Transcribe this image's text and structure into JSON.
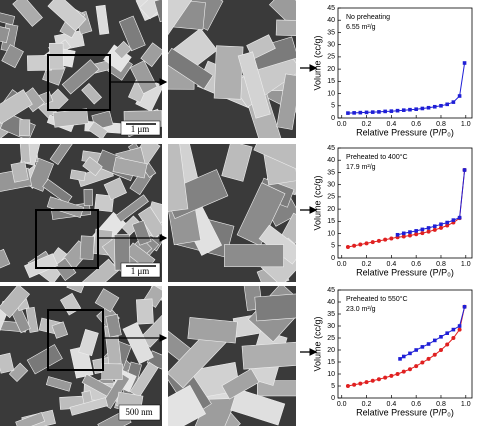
{
  "images": [
    {
      "scale_bar": "1 μm"
    },
    {
      "scale_bar": "1 μm"
    },
    {
      "scale_bar": "500 nm"
    }
  ],
  "chart_data": [
    {
      "type": "line",
      "annotation": "No preheating",
      "annotation2": "6.55 m²/g",
      "x_label": "Relative Pressure (P/P₀)",
      "y_label": "Volume (cc/g)",
      "xlim": [
        -0.03,
        1.05
      ],
      "ylim": [
        0,
        45
      ],
      "xticks": [
        {
          "value": 0,
          "label": "0.0"
        },
        0.2,
        0.4,
        0.6,
        0.8,
        {
          "value": 1,
          "label": "1.0"
        }
      ],
      "yticks": [
        0,
        5,
        10,
        15,
        20,
        25,
        30,
        35,
        40,
        45
      ],
      "series": [
        {
          "color": "#1f1fd6",
          "marker": "square",
          "x": [
            0.05,
            0.1,
            0.15,
            0.2,
            0.25,
            0.3,
            0.35,
            0.4,
            0.45,
            0.5,
            0.55,
            0.6,
            0.65,
            0.7,
            0.75,
            0.8,
            0.85,
            0.9,
            0.95,
            0.99
          ],
          "values": [
            2.0,
            2.1,
            2.2,
            2.3,
            2.4,
            2.5,
            2.7,
            2.8,
            3.0,
            3.2,
            3.4,
            3.6,
            3.9,
            4.2,
            4.6,
            5.0,
            5.6,
            6.5,
            9.0,
            22.5
          ]
        }
      ]
    },
    {
      "type": "line",
      "annotation": "Preheated to 400°C",
      "annotation2": "17.9 m²/g",
      "x_label": "Relative Pressure (P/P₀)",
      "y_label": "Volume (cc/g)",
      "xlim": [
        -0.03,
        1.05
      ],
      "ylim": [
        0,
        45
      ],
      "xticks": [
        {
          "value": 0,
          "label": "0.0"
        },
        0.2,
        0.4,
        0.6,
        0.8,
        {
          "value": 1,
          "label": "1.0"
        }
      ],
      "yticks": [
        0,
        5,
        10,
        15,
        20,
        25,
        30,
        35,
        40,
        45
      ],
      "series": [
        {
          "color": "#e02020",
          "marker": "circle",
          "x": [
            0.05,
            0.1,
            0.15,
            0.2,
            0.25,
            0.3,
            0.35,
            0.4,
            0.45,
            0.5,
            0.55,
            0.6,
            0.65,
            0.7,
            0.75,
            0.8,
            0.85,
            0.9,
            0.95,
            0.99
          ],
          "values": [
            4.5,
            5,
            5.5,
            6,
            6.5,
            7,
            7.5,
            8,
            8.5,
            8.8,
            9.2,
            9.7,
            10.2,
            10.8,
            11.5,
            12.3,
            13.3,
            14.5,
            16.3,
            36
          ]
        },
        {
          "color": "#1f1fd6",
          "marker": "square",
          "x": [
            0.99,
            0.95,
            0.9,
            0.85,
            0.8,
            0.75,
            0.7,
            0.65,
            0.6,
            0.55,
            0.5,
            0.45
          ],
          "values": [
            36,
            16.5,
            15.5,
            14.5,
            13.8,
            13,
            12.3,
            11.7,
            11.1,
            10.6,
            10.1,
            9.5
          ]
        }
      ]
    },
    {
      "type": "line",
      "annotation": "Preheated to 550°C",
      "annotation2": "23.0 m²/g",
      "x_label": "Relative Pressure (P/P₀)",
      "y_label": "Volume (cc/g)",
      "xlim": [
        -0.03,
        1.05
      ],
      "ylim": [
        0,
        45
      ],
      "xticks": [
        {
          "value": 0,
          "label": "0.0"
        },
        0.2,
        0.4,
        0.6,
        0.8,
        {
          "value": 1,
          "label": "1.0"
        }
      ],
      "yticks": [
        0,
        5,
        10,
        15,
        20,
        25,
        30,
        35,
        40,
        45
      ],
      "series": [
        {
          "color": "#e02020",
          "marker": "circle",
          "x": [
            0.05,
            0.1,
            0.15,
            0.2,
            0.25,
            0.3,
            0.35,
            0.4,
            0.45,
            0.5,
            0.55,
            0.6,
            0.65,
            0.7,
            0.75,
            0.8,
            0.85,
            0.9,
            0.95,
            0.99
          ],
          "values": [
            5,
            5.5,
            6,
            6.6,
            7.2,
            7.8,
            8.5,
            9.2,
            10,
            11,
            12,
            13.3,
            14.8,
            16.3,
            18,
            20,
            22.3,
            25,
            28.5,
            38
          ]
        },
        {
          "color": "#1f1fd6",
          "marker": "square",
          "x": [
            0.99,
            0.95,
            0.9,
            0.85,
            0.8,
            0.75,
            0.7,
            0.65,
            0.6,
            0.55,
            0.5,
            0.47
          ],
          "values": [
            38,
            30,
            28.5,
            27,
            25.5,
            24,
            22.5,
            21.3,
            20,
            18.6,
            17.3,
            16.3
          ]
        }
      ]
    }
  ]
}
